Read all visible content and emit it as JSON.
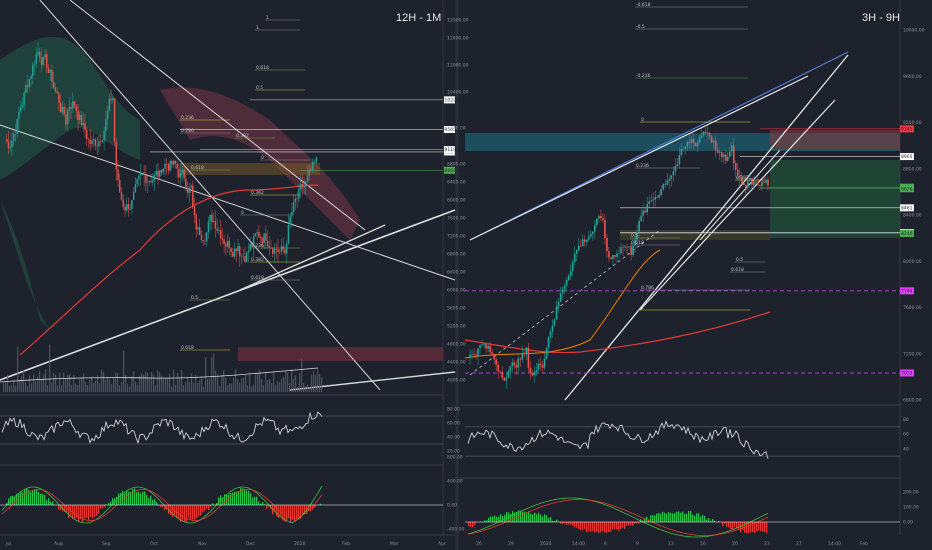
{
  "panels": {
    "left": {
      "timeframe": "12H - 1M"
    },
    "right": {
      "timeframe": "3H - 9H"
    }
  },
  "chart_data": [
    {
      "type": "candlestick",
      "timeframe": "12H - 1M",
      "x_ticks": [
        "Jul",
        "Aug",
        "Sep",
        "Oct",
        "Nov",
        "Dec",
        "2020",
        "Feb",
        "Mar",
        "Apr"
      ],
      "y_ticks": [
        12000,
        11600,
        11000,
        10400,
        9600,
        8800,
        8400,
        8000,
        7600,
        7200,
        6800,
        6400,
        6000,
        5600,
        5200,
        4800,
        4400,
        4000
      ],
      "y_tick_labels": [
        "12000.00",
        "11600.00",
        "11000.00",
        "10400.00",
        "9600.00",
        "8800.00",
        "8400.00",
        "8000.00",
        "7600.00",
        "7200.00",
        "6800.00",
        "6400.00",
        "6000.00",
        "5600.00",
        "5200.00",
        "4800.00",
        "4400.00",
        "4000.00"
      ],
      "price_tags": [
        {
          "label": "10225.00",
          "color": "#ffffff"
        },
        {
          "label": "9565.92",
          "color": "#ffffff"
        },
        {
          "label": "9068.00",
          "color": "#ffffff"
        },
        {
          "label": "9119.28",
          "color": "#ffffff"
        },
        {
          "label": "8660.00",
          "color": "#4caf50"
        }
      ],
      "fib_labels": [
        "1",
        "0.618",
        "0.5",
        "0.786",
        "0.382",
        "0.236",
        "0",
        "0.618",
        "0.382",
        "0",
        "0.236",
        "0.382",
        "0.618",
        "0.5",
        "0.618",
        "1"
      ],
      "indicators": {
        "rsi": {
          "y_ticks": [
            80,
            60,
            40,
            20
          ],
          "y_tick_labels": [
            "80.00",
            "60.00",
            "40.00",
            "20.00"
          ]
        },
        "macd": {
          "y_ticks": [
            800,
            400,
            0,
            -400
          ],
          "y_tick_labels": [
            "800.00",
            "400.00",
            "0.00",
            "-400.00"
          ]
        }
      }
    },
    {
      "type": "candlestick",
      "timeframe": "3H - 9H",
      "x_ticks": [
        "26",
        "29",
        "2020",
        "14:00",
        "6",
        "9",
        "13",
        "16",
        "20",
        "23",
        "27",
        "14:00",
        "Feb"
      ],
      "y_ticks": [
        10000,
        9600,
        9200,
        8800,
        8400,
        8000,
        7600,
        7200,
        6800
      ],
      "y_tick_labels": [
        "10000.00",
        "9600.00",
        "9200.00",
        "8800.00",
        "8400.00",
        "8000.00",
        "7600.00",
        "7200.00",
        "6800.00"
      ],
      "price_tags": [
        {
          "label": "9145.00",
          "color": "#f23645"
        },
        {
          "label": "8905.22",
          "color": "#ffffff"
        },
        {
          "label": "8640.56",
          "color": "#4caf50"
        },
        {
          "label": "8626.94",
          "color": "#4caf50"
        },
        {
          "label": "8461.92",
          "color": "#ffffff"
        },
        {
          "label": "8247.00",
          "color": "#ffffff"
        },
        {
          "label": "8240.85",
          "color": "#4caf50"
        },
        {
          "label": "7744.06",
          "color": "#e040fb"
        },
        {
          "label": "7033.90",
          "color": "#e040fb"
        }
      ],
      "fib_labels": [
        "-0.618",
        "-0.5",
        "-0.236",
        "0",
        "0.236",
        "0.5",
        "0.618",
        "0.382",
        "0.5",
        "0.618",
        "0.786",
        "1"
      ],
      "indicators": {
        "rsi": {
          "y_ticks": [
            80,
            60,
            40
          ],
          "y_tick_labels": [
            "80",
            "60",
            "40"
          ]
        },
        "macd": {
          "y_ticks": [
            200,
            100,
            0
          ],
          "y_tick_labels": [
            "200.00",
            "100.00",
            "0.00"
          ]
        }
      }
    }
  ]
}
